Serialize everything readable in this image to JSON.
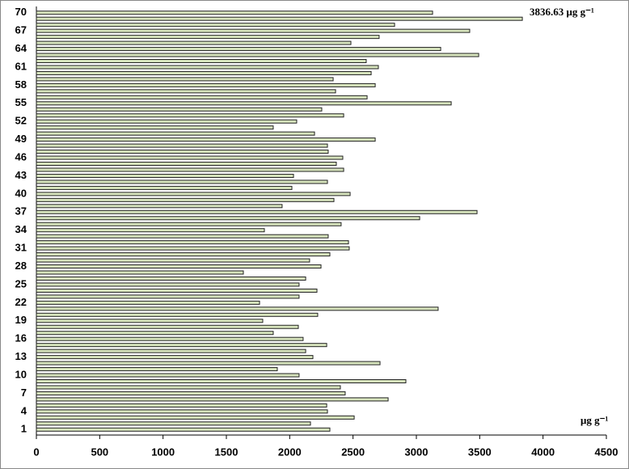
{
  "chart_data": {
    "type": "barh",
    "categories": [
      "1",
      null,
      null,
      "4",
      null,
      null,
      "7",
      null,
      null,
      "10",
      null,
      null,
      "13",
      null,
      null,
      "16",
      null,
      null,
      "19",
      null,
      null,
      "22",
      null,
      null,
      "25",
      null,
      null,
      "28",
      null,
      null,
      "31",
      null,
      null,
      "34",
      null,
      null,
      "37",
      null,
      null,
      "40",
      null,
      null,
      "43",
      null,
      null,
      "46",
      null,
      null,
      "49",
      null,
      null,
      "52",
      null,
      null,
      "55",
      null,
      null,
      "58",
      null,
      null,
      "61",
      null,
      null,
      "64",
      null,
      null,
      "67",
      null,
      null,
      "70"
    ],
    "values": [
      2317,
      2164,
      2509,
      2298,
      2292,
      2777,
      2438,
      2400,
      2917,
      2074,
      1902,
      2713,
      2183,
      2126,
      2292,
      2106,
      1870,
      2068,
      1787,
      2221,
      3172,
      1762,
      2074,
      2215,
      2074,
      2126,
      1634,
      2247,
      2157,
      2317,
      2470,
      2464,
      2304,
      1800,
      2406,
      3026,
      3479,
      1940,
      2349,
      2477,
      2017,
      2298,
      2030,
      2426,
      2368,
      2419,
      2304,
      2298,
      2675,
      2196,
      1870,
      2055,
      2426,
      2253,
      3275,
      2611,
      2362,
      2675,
      2343,
      2643,
      2700,
      2604,
      3492,
      3192,
      2483,
      2706,
      3421,
      2828,
      3836.63,
      3128
    ],
    "color": "#d7e4bd",
    "xlim": [
      0,
      4500
    ],
    "xticks": [
      0,
      500,
      1000,
      1500,
      2000,
      2500,
      3000,
      3500,
      4000,
      4500
    ],
    "annotations": [
      "3836.63 μg g⁻¹",
      "μg g⁻¹"
    ]
  }
}
